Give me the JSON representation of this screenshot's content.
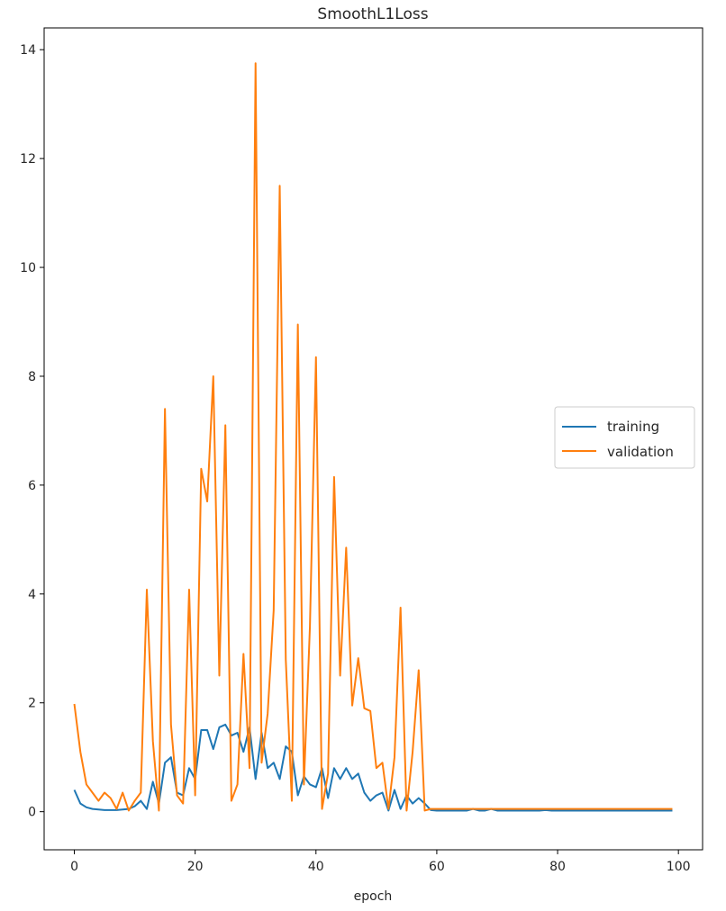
{
  "chart_data": {
    "type": "line",
    "title": "SmoothL1Loss",
    "xlabel": "epoch",
    "ylabel": "",
    "xlim": [
      -5,
      104
    ],
    "ylim": [
      -0.7,
      14.4
    ],
    "xticks": [
      0,
      20,
      40,
      60,
      80,
      100
    ],
    "yticks": [
      0,
      2,
      4,
      6,
      8,
      10,
      12,
      14
    ],
    "grid": false,
    "legend_position": "center right",
    "x": [
      0,
      1,
      2,
      3,
      4,
      5,
      6,
      7,
      8,
      9,
      10,
      11,
      12,
      13,
      14,
      15,
      16,
      17,
      18,
      19,
      20,
      21,
      22,
      23,
      24,
      25,
      26,
      27,
      28,
      29,
      30,
      31,
      32,
      33,
      34,
      35,
      36,
      37,
      38,
      39,
      40,
      41,
      42,
      43,
      44,
      45,
      46,
      47,
      48,
      49,
      50,
      51,
      52,
      53,
      54,
      55,
      56,
      57,
      58,
      59,
      60,
      61,
      62,
      63,
      64,
      65,
      66,
      67,
      68,
      69,
      70,
      71,
      72,
      73,
      74,
      75,
      76,
      77,
      78,
      79,
      80,
      81,
      82,
      83,
      84,
      85,
      86,
      87,
      88,
      89,
      90,
      91,
      92,
      93,
      94,
      95,
      96,
      97,
      98,
      99
    ],
    "series": [
      {
        "name": "training",
        "color": "#1f77b4",
        "values": [
          0.4,
          0.15,
          0.08,
          0.05,
          0.04,
          0.03,
          0.03,
          0.03,
          0.04,
          0.05,
          0.1,
          0.2,
          0.05,
          0.55,
          0.15,
          0.9,
          1.0,
          0.35,
          0.3,
          0.8,
          0.6,
          1.5,
          1.5,
          1.15,
          1.55,
          1.6,
          1.4,
          1.45,
          1.1,
          1.55,
          0.6,
          1.45,
          0.8,
          0.9,
          0.6,
          1.2,
          1.1,
          0.3,
          0.65,
          0.5,
          0.45,
          0.8,
          0.25,
          0.8,
          0.6,
          0.8,
          0.6,
          0.7,
          0.35,
          0.2,
          0.3,
          0.35,
          0.02,
          0.4,
          0.05,
          0.3,
          0.15,
          0.25,
          0.15,
          0.03,
          0.02,
          0.02,
          0.02,
          0.02,
          0.02,
          0.02,
          0.05,
          0.02,
          0.02,
          0.05,
          0.02,
          0.02,
          0.02,
          0.02,
          0.02,
          0.02,
          0.02,
          0.02,
          0.03,
          0.02,
          0.02,
          0.02,
          0.02,
          0.02,
          0.02,
          0.02,
          0.02,
          0.02,
          0.02,
          0.02,
          0.02,
          0.02,
          0.02,
          0.02,
          0.02,
          0.02,
          0.02,
          0.02,
          0.02,
          0.02
        ]
      },
      {
        "name": "validation",
        "color": "#ff7f0e",
        "values": [
          1.98,
          1.1,
          0.5,
          0.35,
          0.2,
          0.35,
          0.25,
          0.05,
          0.35,
          0.02,
          0.2,
          0.35,
          4.08,
          1.3,
          0.02,
          7.4,
          1.6,
          0.3,
          0.15,
          4.08,
          0.3,
          6.3,
          5.7,
          8.0,
          2.5,
          7.1,
          0.2,
          0.5,
          2.9,
          0.8,
          13.75,
          0.9,
          1.8,
          3.7,
          11.5,
          2.8,
          0.2,
          8.95,
          0.5,
          3.4,
          8.35,
          0.05,
          0.7,
          6.15,
          2.5,
          4.85,
          1.95,
          2.82,
          1.9,
          1.85,
          0.8,
          0.9,
          0.05,
          1.0,
          3.75,
          0.02,
          1.1,
          2.6,
          0.02,
          0.05,
          0.05,
          0.05,
          0.05,
          0.05,
          0.05,
          0.05,
          0.05,
          0.05,
          0.05,
          0.05,
          0.05,
          0.05,
          0.05,
          0.05,
          0.05,
          0.05,
          0.05,
          0.05,
          0.05,
          0.05,
          0.05,
          0.05,
          0.05,
          0.05,
          0.05,
          0.05,
          0.05,
          0.05,
          0.05,
          0.05,
          0.05,
          0.05,
          0.05,
          0.05,
          0.05,
          0.05,
          0.05,
          0.05,
          0.05,
          0.05
        ]
      }
    ]
  }
}
